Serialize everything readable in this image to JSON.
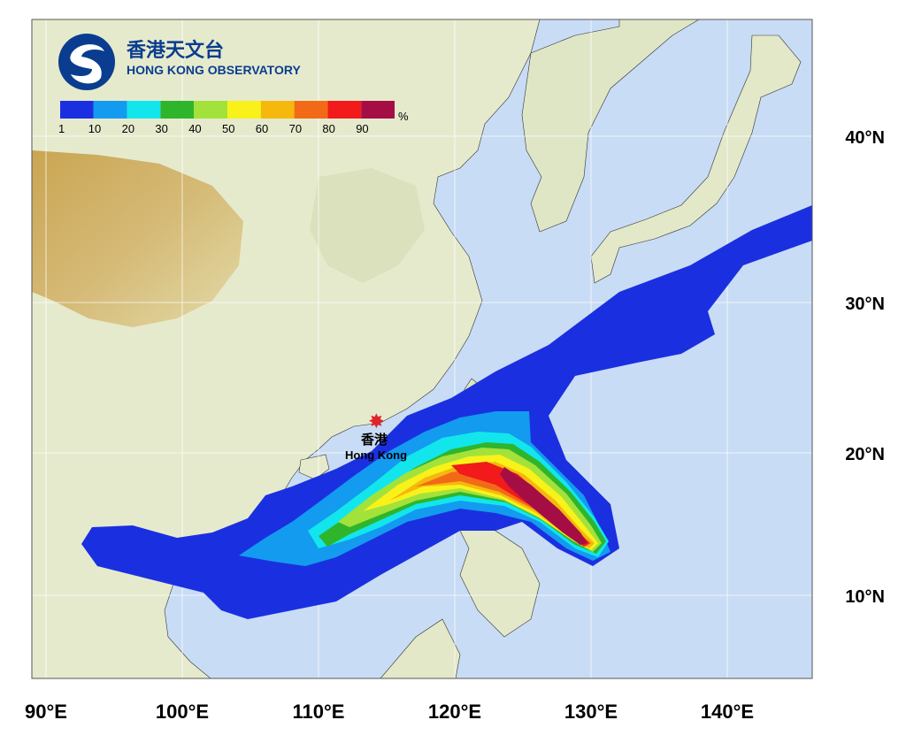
{
  "branding": {
    "name_chinese": "香港天文台",
    "name_english": "HONG KONG OBSERVATORY",
    "logo_icon": "hko-swirl-logo"
  },
  "legend": {
    "unit": "%",
    "colors": [
      "#1a30e0",
      "#139bef",
      "#12e6ec",
      "#2fb52c",
      "#a3e23a",
      "#f8f21a",
      "#f6b80c",
      "#f26a18",
      "#f21a1a",
      "#a50e45"
    ],
    "labels": [
      "1",
      "10",
      "20",
      "30",
      "40",
      "50",
      "60",
      "70",
      "80",
      "90"
    ]
  },
  "axes": {
    "x_ticks": [
      "90°E",
      "100°E",
      "110°E",
      "120°E",
      "130°E",
      "140°E"
    ],
    "y_ticks": [
      "40°N",
      "30°N",
      "20°N",
      "10°N"
    ]
  },
  "marker": {
    "label_chinese": "香港",
    "label_english": "Hong Kong",
    "icon": "asterisk-star-icon",
    "color": "#e0242a"
  },
  "map_colors": {
    "ocean": "#c9dcf5",
    "land_low": "#e9ecd0",
    "land_mid": "#d6e0c0",
    "plateau": "#c9a75a"
  }
}
